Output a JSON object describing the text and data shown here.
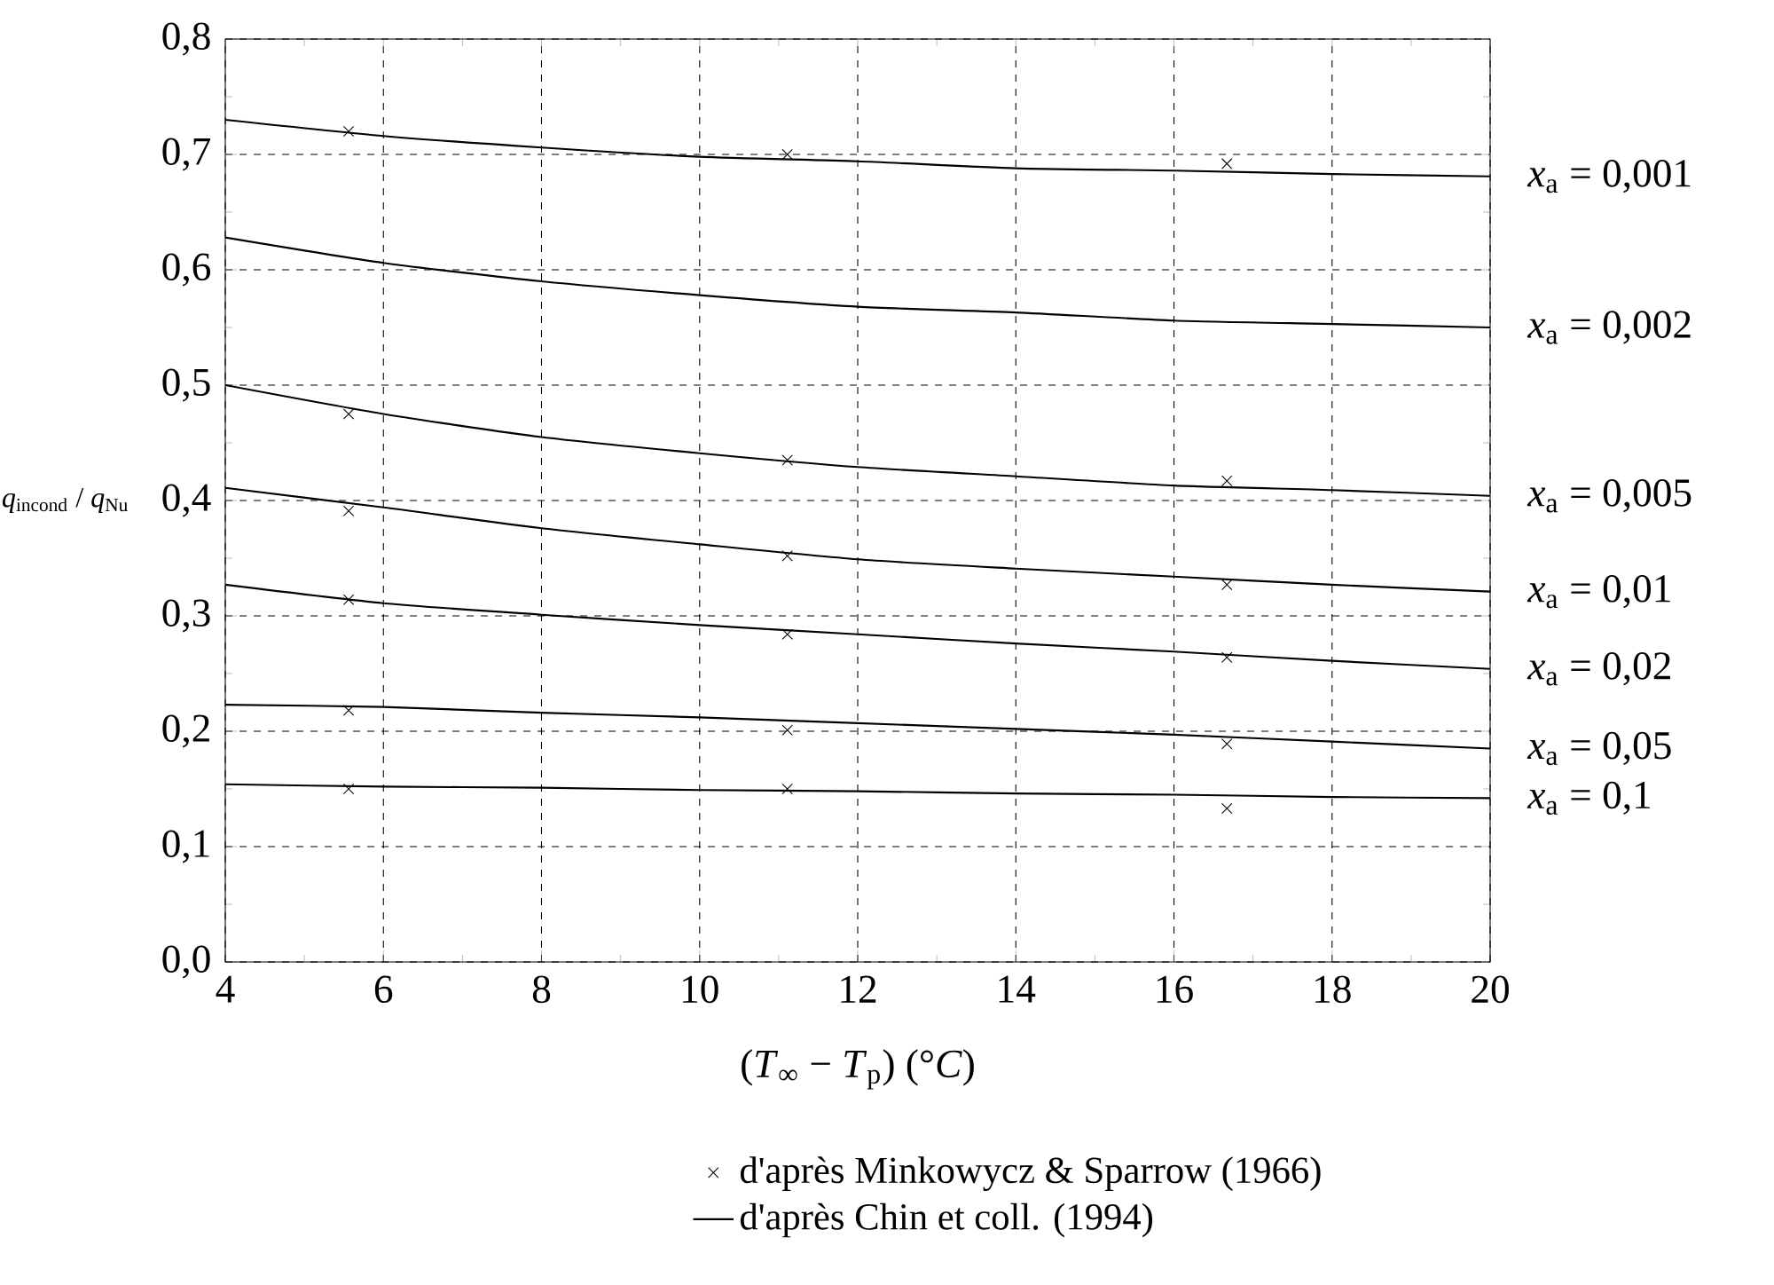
{
  "chart_data": {
    "type": "line",
    "xlabel": "(*T*$_{∞}$ − *T*$_{p}$) (°*C*)",
    "ylabel": "*q*$_{incond}$ / *q*$_{Nu}$",
    "xlim": [
      4,
      20
    ],
    "xticks": [
      4,
      6,
      8,
      10,
      12,
      14,
      16,
      18,
      20
    ],
    "ylim": [
      0,
      0.8
    ],
    "yticks": [
      {
        "value": 0,
        "label": "0,0"
      },
      {
        "value": 0.1,
        "label": "0,1"
      },
      {
        "value": 0.2,
        "label": "0,2"
      },
      {
        "value": 0.3,
        "label": "0,3"
      },
      {
        "value": 0.4,
        "label": "0,4"
      },
      {
        "value": 0.5,
        "label": "0,5"
      },
      {
        "value": 0.6,
        "label": "0,6"
      },
      {
        "value": 0.7,
        "label": "0,7"
      },
      {
        "value": 0.8,
        "label": "0,8"
      }
    ],
    "grid": true,
    "legend": "bottom",
    "line_style": "solid",
    "series": [
      {
        "type": "scatter",
        "name": "d'après Minkowycz & Sparrow (1966)",
        "color": "#000000",
        "marker": "cross",
        "x": [
          5.56,
          11.11,
          16.67,
          5.56,
          11.11,
          16.67,
          5.56,
          11.11,
          16.67,
          5.56,
          11.11,
          16.67,
          5.56,
          11.11,
          16.67,
          5.56,
          11.11,
          16.67
        ],
        "values": [
          0.72,
          0.7,
          0.692,
          0.475,
          0.435,
          0.417,
          0.391,
          0.352,
          0.327,
          0.314,
          0.284,
          0.264,
          0.218,
          0.201,
          0.189,
          0.15,
          0.15,
          0.133
        ]
      },
      {
        "type": "line",
        "name": "*x*$_{a}$ = 0,001",
        "color": "#000000",
        "marker": "none",
        "x": [
          4,
          6,
          8,
          10,
          12,
          14,
          16,
          18,
          20
        ],
        "values": [
          0.73,
          0.716,
          0.706,
          0.698,
          0.694,
          0.688,
          0.686,
          0.683,
          0.681
        ]
      },
      {
        "type": "line",
        "name": "*x*$_{a}$ = 0,002",
        "color": "#000000",
        "marker": "none",
        "x": [
          4,
          6,
          8,
          10,
          12,
          14,
          16,
          18,
          20
        ],
        "values": [
          0.628,
          0.606,
          0.59,
          0.578,
          0.568,
          0.563,
          0.556,
          0.553,
          0.55
        ]
      },
      {
        "type": "line",
        "name": "*x*$_{a}$ = 0,005",
        "color": "#000000",
        "marker": "none",
        "x": [
          4,
          6,
          8,
          10,
          12,
          14,
          16,
          18,
          20
        ],
        "values": [
          0.5,
          0.475,
          0.455,
          0.441,
          0.429,
          0.421,
          0.413,
          0.409,
          0.404
        ]
      },
      {
        "type": "line",
        "name": "*x*$_{a}$ = 0,01",
        "color": "#000000",
        "marker": "none",
        "x": [
          4,
          6,
          8,
          10,
          12,
          14,
          16,
          18,
          20
        ],
        "values": [
          0.411,
          0.394,
          0.376,
          0.362,
          0.349,
          0.341,
          0.334,
          0.327,
          0.321
        ]
      },
      {
        "type": "line",
        "name": "*x*$_{a}$ = 0,02",
        "color": "#000000",
        "marker": "none",
        "x": [
          4,
          6,
          8,
          10,
          12,
          14,
          16,
          18,
          20
        ],
        "values": [
          0.327,
          0.311,
          0.301,
          0.292,
          0.284,
          0.276,
          0.269,
          0.261,
          0.254
        ]
      },
      {
        "type": "line",
        "name": "*x*$_{a}$ = 0,05",
        "color": "#000000",
        "marker": "none",
        "x": [
          4,
          6,
          8,
          10,
          12,
          14,
          16,
          18,
          20
        ],
        "values": [
          0.223,
          0.221,
          0.216,
          0.212,
          0.207,
          0.202,
          0.197,
          0.191,
          0.185
        ]
      },
      {
        "type": "line",
        "name": "*x*$_{a}$ = 0,1",
        "color": "#000000",
        "marker": "none",
        "x": [
          4,
          6,
          8,
          10,
          12,
          14,
          16,
          18,
          20
        ],
        "values": [
          0.154,
          0.152,
          0.151,
          0.149,
          0.148,
          0.146,
          0.145,
          0.143,
          0.142
        ]
      }
    ],
    "annotations": [
      "d'après Chin et coll. (1994)"
    ]
  }
}
